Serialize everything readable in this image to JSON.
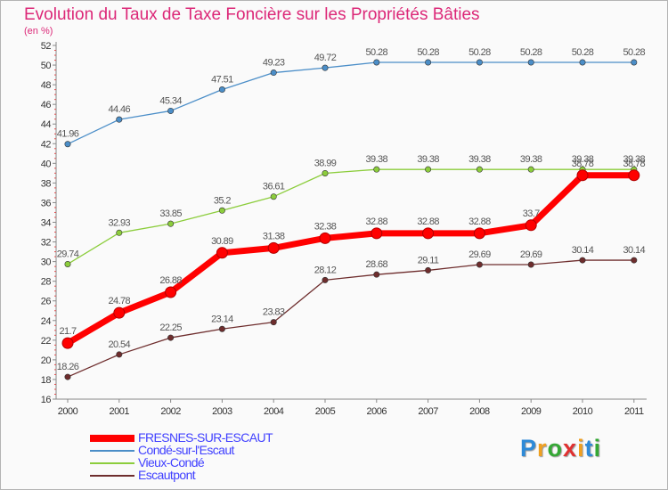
{
  "chart_data": {
    "type": "line",
    "title": "Evolution du Taux de Taxe Foncière sur les Propriétés Bâties",
    "ylabel": "(en %)",
    "xlabel": "",
    "x": [
      "2000",
      "2001",
      "2002",
      "2003",
      "2004",
      "2005",
      "2006",
      "2007",
      "2008",
      "2009",
      "2010",
      "2011"
    ],
    "ylim": [
      16,
      52
    ],
    "yticks": [
      16,
      18,
      20,
      22,
      24,
      26,
      28,
      30,
      32,
      34,
      36,
      38,
      40,
      42,
      44,
      46,
      48,
      50,
      52
    ],
    "grid": false,
    "legend_position": "bottom-left",
    "series": [
      {
        "name": "FRESNES-SUR-ESCAUT",
        "color": "#ff0000",
        "values": [
          21.7,
          24.78,
          26.88,
          30.89,
          31.38,
          32.38,
          32.88,
          32.88,
          32.88,
          33.7,
          38.78,
          38.78
        ],
        "labels": [
          "21.7",
          "24.78",
          "26.88",
          "30.89",
          "31.38",
          "32.38",
          "32.88",
          "32.88",
          "32.88",
          "33.7",
          "38.78",
          "38.78"
        ]
      },
      {
        "name": "Condé-sur-l'Escaut",
        "color": "#4b8ec8",
        "values": [
          41.96,
          44.46,
          45.34,
          47.51,
          49.23,
          49.72,
          50.28,
          50.28,
          50.28,
          50.28,
          50.28,
          50.28
        ],
        "labels": [
          "41.96",
          "44.46",
          "45.34",
          "47.51",
          "49.23",
          "49.72",
          "50.28",
          "50.28",
          "50.28",
          "50.28",
          "50.28",
          "50.28"
        ]
      },
      {
        "name": "Vieux-Condé",
        "color": "#8ccd3c",
        "values": [
          29.74,
          32.93,
          33.85,
          35.2,
          36.61,
          38.99,
          39.38,
          39.38,
          39.38,
          39.38,
          39.38,
          39.38
        ],
        "labels": [
          "29.74",
          "32.93",
          "33.85",
          "35.2",
          "36.61",
          "38.99",
          "39.38",
          "39.38",
          "39.38",
          "39.38",
          "39.38",
          "39.38"
        ]
      },
      {
        "name": "Escautpont",
        "color": "#6e2d2d",
        "values": [
          18.26,
          20.54,
          22.25,
          23.14,
          23.83,
          28.12,
          28.68,
          29.11,
          29.69,
          29.69,
          30.14,
          30.14
        ],
        "labels": [
          "18.26",
          "20.54",
          "22.25",
          "23.14",
          "23.83",
          "28.12",
          "28.68",
          "29.11",
          "29.69",
          "29.69",
          "30.14",
          "30.14"
        ]
      }
    ]
  },
  "brand": {
    "letters": [
      "P",
      "r",
      "o",
      "x",
      "i",
      "t",
      "i"
    ],
    "colors": [
      "#2e8ad8",
      "#f0a020",
      "#35a835",
      "#e03030",
      "#f0a020",
      "#2e8ad8",
      "#35a835"
    ]
  }
}
